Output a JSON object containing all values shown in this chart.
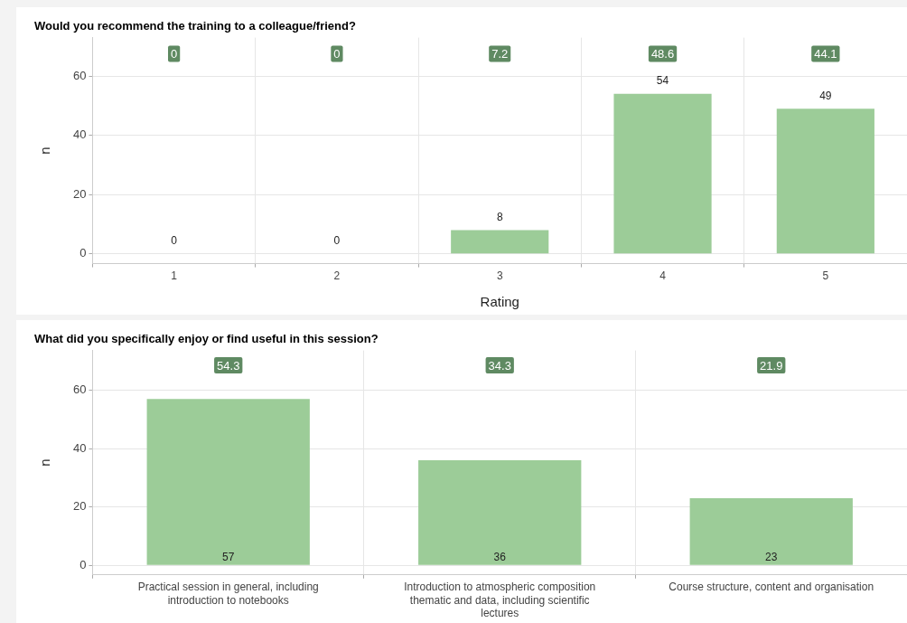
{
  "chart_data": [
    {
      "type": "bar",
      "title": "Would you recommend the training to a colleague/friend?",
      "xlabel": "Rating",
      "ylabel": "n",
      "categories": [
        "1",
        "2",
        "3",
        "4",
        "5"
      ],
      "values": [
        0,
        0,
        8,
        54,
        49
      ],
      "color": "#9ccc98",
      "ylim": [
        -3.3,
        73
      ],
      "yticks": [
        0,
        20,
        40,
        60
      ],
      "grid": true,
      "data_labels": true,
      "annotations": [
        {
          "text": "0",
          "x": "1",
          "y": 67.5
        },
        {
          "text": "0",
          "x": "2",
          "y": 67.5
        },
        {
          "text": "7.2",
          "x": "3",
          "y": 67.5
        },
        {
          "text": "48.6",
          "x": "4",
          "y": 67.5
        },
        {
          "text": "44.1",
          "x": "5",
          "y": 67.5
        }
      ]
    },
    {
      "type": "bar",
      "title": "What did you specifically enjoy or find useful in this session?",
      "ylabel": "n",
      "categories": [
        "Practical session in general, including introduction to notebooks",
        "Introduction to atmospheric composition thematic and data, including scientific lectures",
        "Course structure, content and organisation"
      ],
      "values": [
        57,
        36,
        23
      ],
      "color": "#9ccc98",
      "ylim": [
        -3.3,
        73.6
      ],
      "yticks": [
        0,
        20,
        40,
        60
      ],
      "grid": true,
      "data_labels": true,
      "annotations": [
        {
          "text": "54.3",
          "x": "Practical session in general, including introduction to notebooks",
          "y": 68.5
        },
        {
          "text": "34.3",
          "x": "Introduction to atmospheric composition thematic and data, including scientific lectures",
          "y": 68.5
        },
        {
          "text": "21.9",
          "x": "Course structure, content and organisation",
          "y": 68.5
        }
      ]
    }
  ]
}
